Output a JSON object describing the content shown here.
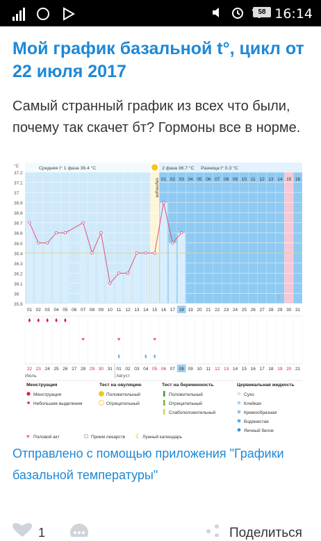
{
  "status": {
    "time": "16:14",
    "battery": "58"
  },
  "post": {
    "title": "Мой график базальной t°, цикл от 22 июля 2017",
    "description": "Самый странный график из всех что были, почему так скачет бт? Гормоны все в норме.",
    "link": "Отправлено с помощью приложения \"Графики базальной температуры\""
  },
  "footer": {
    "likes": "1",
    "share": "Поделиться"
  },
  "colors": {
    "accent": "#1e88d6",
    "phase1_bg": "#cfe9fb",
    "phase2_bg": "#8fcaf2",
    "bar": "#d9eefc",
    "line": "#e0507a",
    "menstruation": "#e21b3c",
    "sex": "#ff4da6",
    "highlight": "#f6c8d6"
  },
  "chart_data": {
    "type": "line",
    "unit_label": "°C",
    "phase1_label": "Средняя t° 1 фаза 36.4 °C",
    "phase2_label": "2 фаза 36.7 °C",
    "difference_label": "Разница t° 0.3 °C",
    "ovulation_label": "овуляция",
    "ylim": [
      35.9,
      37.2
    ],
    "y_ticks": [
      "37.2",
      "37.1",
      "37",
      "36.9",
      "36.8",
      "36.7",
      "36.6",
      "36.5",
      "36.4",
      "36.3",
      "36.2",
      "36.1",
      "36",
      "35.9"
    ],
    "cycle_days": [
      "01",
      "02",
      "03",
      "04",
      "05",
      "06",
      "07",
      "08",
      "09",
      "10",
      "11",
      "12",
      "13",
      "14",
      "15",
      "16",
      "17",
      "18",
      "19",
      "20",
      "21",
      "22",
      "23",
      "24",
      "25",
      "26",
      "27",
      "28",
      "29",
      "30",
      "31"
    ],
    "phase2_days": [
      "01",
      "02",
      "03",
      "04",
      "05",
      "06",
      "07",
      "08",
      "09",
      "10",
      "11",
      "12",
      "13",
      "14",
      "15",
      "16"
    ],
    "calendar_dates": [
      "22",
      "23",
      "24",
      "25",
      "26",
      "27",
      "28",
      "29",
      "30",
      "31",
      "01",
      "02",
      "03",
      "04",
      "05",
      "06",
      "07",
      "08",
      "09",
      "10",
      "11",
      "12",
      "13",
      "14",
      "15",
      "16",
      "17",
      "18",
      "19",
      "20",
      "21"
    ],
    "month_labels": [
      "Июль",
      "Август"
    ],
    "temperatures": [
      36.7,
      36.5,
      36.5,
      36.6,
      36.6,
      null,
      36.7,
      36.4,
      36.6,
      36.1,
      36.2,
      36.2,
      36.4,
      36.4,
      36.4,
      36.9,
      36.5,
      36.6
    ],
    "coverline": 36.4,
    "ovulation_day": 15,
    "menstruation_days": [
      1,
      2,
      3,
      4,
      5
    ],
    "intercourse_days": [
      7,
      11,
      15
    ],
    "cervical_days": [
      11,
      14,
      15
    ]
  },
  "legend": {
    "menstruation": {
      "title": "Менструация",
      "items": [
        "Менструация",
        "Небольшие выделения"
      ]
    },
    "ovulation": {
      "title": "Тест на овуляцию",
      "items": [
        "Положительный",
        "Отрицательный"
      ]
    },
    "pregnancy": {
      "title": "Тест на беременность",
      "items": [
        "Положительный",
        "Отрицательный",
        "Слабоположительный"
      ]
    },
    "cervical": {
      "title": "Цервикальная жидкость",
      "items": [
        "Сухо",
        "Клейкая",
        "Кремообразная",
        "Водянистая",
        "Яичный белок"
      ]
    },
    "misc": [
      "Половой акт",
      "Прием лекарств",
      "Лунный календарь"
    ]
  }
}
